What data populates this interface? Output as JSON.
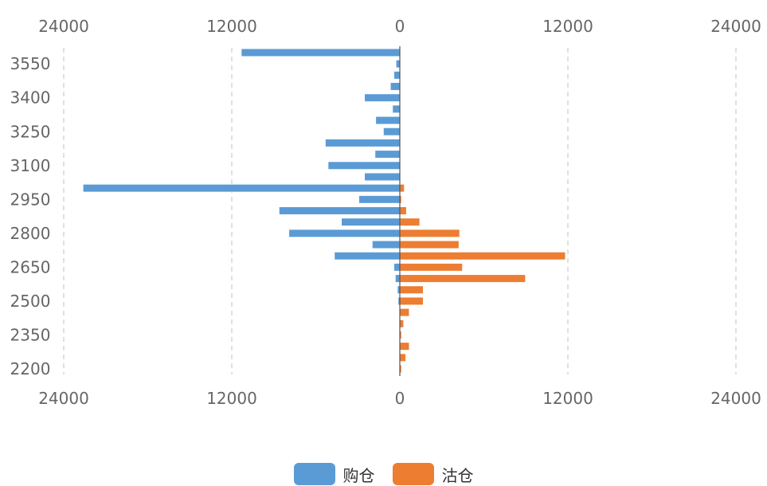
{
  "chart_data": {
    "type": "bar",
    "orientation": "horizontal-butterfly",
    "title": "",
    "xlabel": "",
    "ylabel": "",
    "xlim": [
      -24000,
      24000
    ],
    "x_ticks": [
      -24000,
      -12000,
      0,
      12000,
      24000
    ],
    "x_tick_labels": [
      "24000",
      "12000",
      "0",
      "12000",
      "24000"
    ],
    "ylim": [
      2200,
      3600
    ],
    "y_ticks": [
      2200,
      2350,
      2500,
      2650,
      2800,
      2950,
      3100,
      3250,
      3400,
      3550
    ],
    "y_tick_labels": [
      "2200",
      "2350",
      "2500",
      "2650",
      "2800",
      "2950",
      "3100",
      "3250",
      "3400",
      "3550"
    ],
    "grid": "vertical-dashed",
    "legend_position": "bottom-center",
    "categories": [
      3600,
      3550,
      3500,
      3450,
      3400,
      3350,
      3300,
      3250,
      3200,
      3150,
      3100,
      3050,
      3000,
      2950,
      2900,
      2850,
      2800,
      2750,
      2700,
      2650,
      2600,
      2550,
      2500,
      2450,
      2400,
      2350,
      2300,
      2250,
      2200
    ],
    "series": [
      {
        "name": "购仓",
        "color": "#5b9bd5",
        "direction": "left",
        "values": [
          11300,
          250,
          400,
          650,
          2500,
          500,
          1700,
          1150,
          5300,
          1750,
          5100,
          2500,
          22600,
          2900,
          8600,
          4150,
          7900,
          1950,
          4650,
          400,
          300,
          150,
          100,
          0,
          0,
          0,
          0,
          0,
          0
        ]
      },
      {
        "name": "沽仓",
        "color": "#ed7d31",
        "direction": "right",
        "values": [
          0,
          0,
          0,
          0,
          0,
          0,
          0,
          0,
          0,
          0,
          0,
          0,
          300,
          100,
          450,
          1400,
          4250,
          4200,
          11800,
          4450,
          8950,
          1650,
          1650,
          650,
          250,
          100,
          650,
          400,
          100
        ]
      }
    ]
  }
}
